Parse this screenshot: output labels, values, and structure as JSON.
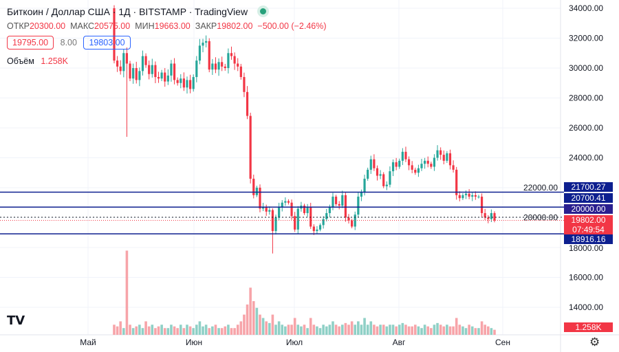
{
  "header": {
    "title": "Биткоин / Доллар США",
    "interval": "1Д",
    "exchange": "BITSTAMP",
    "source": "TradingView"
  },
  "ohlc": {
    "open_label": "ОТКР",
    "open": "20300.00",
    "high_label": "МАКС",
    "high": "20575.00",
    "low_label": "МИН",
    "low": "19663.00",
    "close_label": "ЗАКР",
    "close": "19802.00",
    "change": "−500.00 (−2.46%)"
  },
  "bid": "19795.00",
  "spread": "8.00",
  "ask": "19803.00",
  "volume_label": "Объём",
  "volume_value": "1.258K",
  "colors": {
    "up": "#26a69a",
    "down": "#f23645",
    "line": "#0d1f8f"
  },
  "chart_data": {
    "type": "candlestick",
    "ylim": [
      16000,
      34000
    ],
    "y_ticks": [
      "34000.00",
      "32000.00",
      "30000.00",
      "28000.00",
      "26000.00",
      "24000.00",
      "22000.00",
      "20000.00",
      "18000.00",
      "16000.00",
      "14000.00"
    ],
    "x_ticks": [
      "Май",
      "Июн",
      "Июл",
      "Авг",
      "Сен"
    ],
    "first_open": 34000,
    "closes": [
      30500,
      30100,
      29800,
      31000,
      30300,
      29300,
      30000,
      29200,
      29800,
      30800,
      30200,
      29600,
      30200,
      29400,
      29300,
      29700,
      29100,
      29500,
      30300,
      29200,
      29000,
      29300,
      28700,
      29200,
      28600,
      29400,
      30500,
      31500,
      31700,
      31800,
      29900,
      30300,
      29900,
      30400,
      30100,
      30000,
      31000,
      30800,
      30300,
      30100,
      29400,
      28400,
      26800,
      22600,
      21500,
      22000,
      20600,
      20700,
      20400,
      20500,
      19100,
      20000,
      20700,
      21000,
      21100,
      21000,
      20100,
      19200,
      20600,
      20800,
      20300,
      20700,
      19400,
      19100,
      19200,
      19500,
      19900,
      20300,
      20700,
      21400,
      20900,
      20800,
      21500,
      20000,
      19800,
      19400,
      20200,
      21400,
      21700,
      22600,
      23200,
      23900,
      23300,
      22800,
      22900,
      22100,
      22200,
      23100,
      23700,
      23400,
      23800,
      24400,
      23900,
      23500,
      23200,
      23000,
      23300,
      23600,
      23800,
      23600,
      23400,
      24000,
      24500,
      24200,
      23800,
      24300,
      23500,
      23200,
      21500,
      21300,
      21500,
      21600,
      21400,
      21500,
      21400,
      21400,
      20300,
      20000,
      19900,
      20300,
      19802
    ],
    "volumes": [
      3,
      2.5,
      4,
      2,
      25,
      3,
      2,
      2.5,
      3,
      2,
      4,
      2.5,
      3,
      2,
      2.5,
      3,
      2,
      2,
      3,
      2.5,
      2,
      3,
      2,
      3,
      2.5,
      2,
      3,
      4,
      2.5,
      3,
      2,
      2.5,
      3,
      2,
      2,
      2.5,
      3,
      2,
      2,
      3,
      4,
      6,
      9,
      14,
      10,
      8,
      6,
      5,
      4,
      3.5,
      6,
      3,
      4,
      3,
      2.5,
      3,
      3,
      5,
      3,
      2.5,
      3,
      2,
      5,
      3,
      2.5,
      2,
      3,
      2.5,
      3,
      4,
      3,
      2.5,
      3,
      3.5,
      3,
      4,
      3,
      4,
      3,
      5,
      3,
      4,
      3,
      2.5,
      3,
      3,
      2.5,
      3,
      3,
      2.5,
      3,
      3.5,
      3,
      2.5,
      2.5,
      3,
      2.5,
      2,
      3,
      2.5,
      2,
      3,
      3.5,
      3,
      2.5,
      3,
      2.5,
      2.5,
      5,
      3,
      2.5,
      2,
      3,
      2.5,
      2,
      2,
      4,
      3,
      2.5,
      2,
      1.5
    ],
    "levels": [
      {
        "value": 21700.27,
        "label": "21700.27"
      },
      {
        "value": 20700.41,
        "label": "20700.41"
      },
      {
        "value": 18916.16,
        "label": "18916.16"
      }
    ],
    "price_tags": {
      "l1": "21700.27",
      "l2": "20700.41",
      "l3": "20000.00",
      "last": "19802.00",
      "countdown": "07:49:54",
      "l4": "18916.16",
      "vol": "1.258K"
    }
  }
}
